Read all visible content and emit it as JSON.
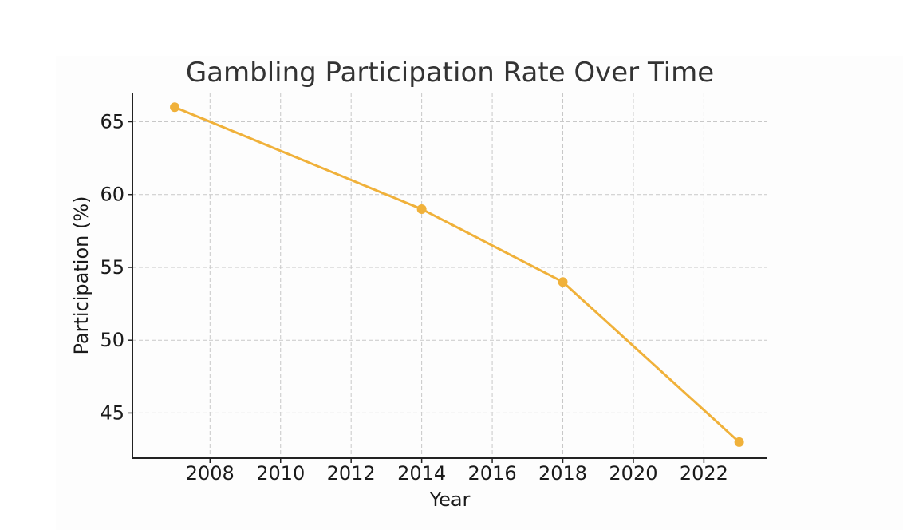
{
  "chart_data": {
    "type": "line",
    "title": "Gambling Participation Rate Over Time",
    "xlabel": "Year",
    "ylabel": "Participation (%)",
    "x": [
      2007,
      2014,
      2018,
      2023
    ],
    "series": [
      {
        "values": [
          66,
          59,
          54,
          43
        ],
        "color": "#f0b13a"
      }
    ],
    "xlim": [
      2005.8,
      2023.8
    ],
    "ylim": [
      41.9,
      67
    ],
    "xticks": [
      2008,
      2010,
      2012,
      2014,
      2016,
      2018,
      2020,
      2022
    ],
    "yticks": [
      45,
      50,
      55,
      60,
      65
    ],
    "grid": true,
    "markers": true
  }
}
